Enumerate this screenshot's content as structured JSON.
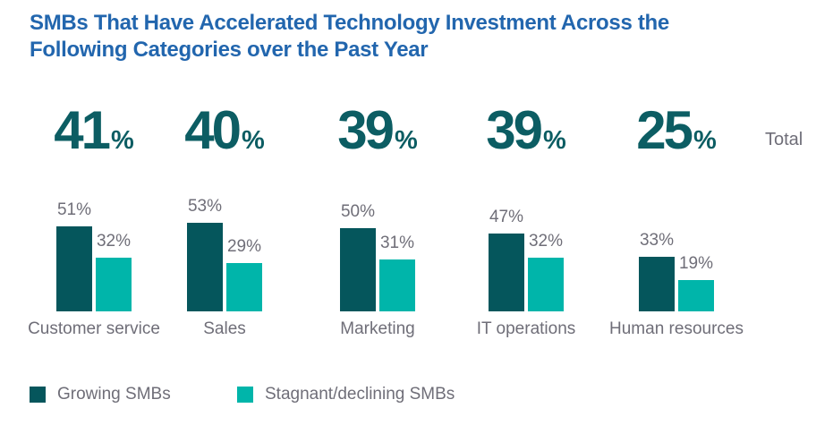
{
  "title": {
    "line1": "SMBs That Have Accelerated Technology Investment Across the",
    "line2": "Following Categories over the Past Year"
  },
  "total_label": "Total",
  "legend": {
    "items": [
      {
        "label": "Growing SMBs",
        "color": "#05565c"
      },
      {
        "label": "Stagnant/declining SMBs",
        "color": "#00b5aa"
      }
    ]
  },
  "chart_data": {
    "type": "bar",
    "title": "SMBs That Have Accelerated Technology Investment Across the Following Categories over the Past Year",
    "categories": [
      "Customer service",
      "Sales",
      "Marketing",
      "IT operations",
      "Human resources"
    ],
    "series": [
      {
        "name": "Growing SMBs",
        "color": "#05565c",
        "values": [
          51,
          53,
          50,
          47,
          33
        ]
      },
      {
        "name": "Stagnant/declining SMBs",
        "color": "#00b5aa",
        "values": [
          32,
          29,
          31,
          32,
          19
        ]
      }
    ],
    "totals": {
      "label": "Total",
      "values": [
        41,
        40,
        39,
        39,
        25
      ]
    },
    "value_suffix": "%",
    "value_labels": true,
    "ylim": [
      0,
      60
    ],
    "grid": false,
    "legend_position": "bottom"
  },
  "colors": {
    "title_blue": "#2266ae",
    "big_number_teal": "#0c5d63",
    "text_gray": "#6f6e78",
    "growing_smbs": "#05565c",
    "stagnant_smbs": "#00b5aa",
    "background": "#ffffff"
  }
}
